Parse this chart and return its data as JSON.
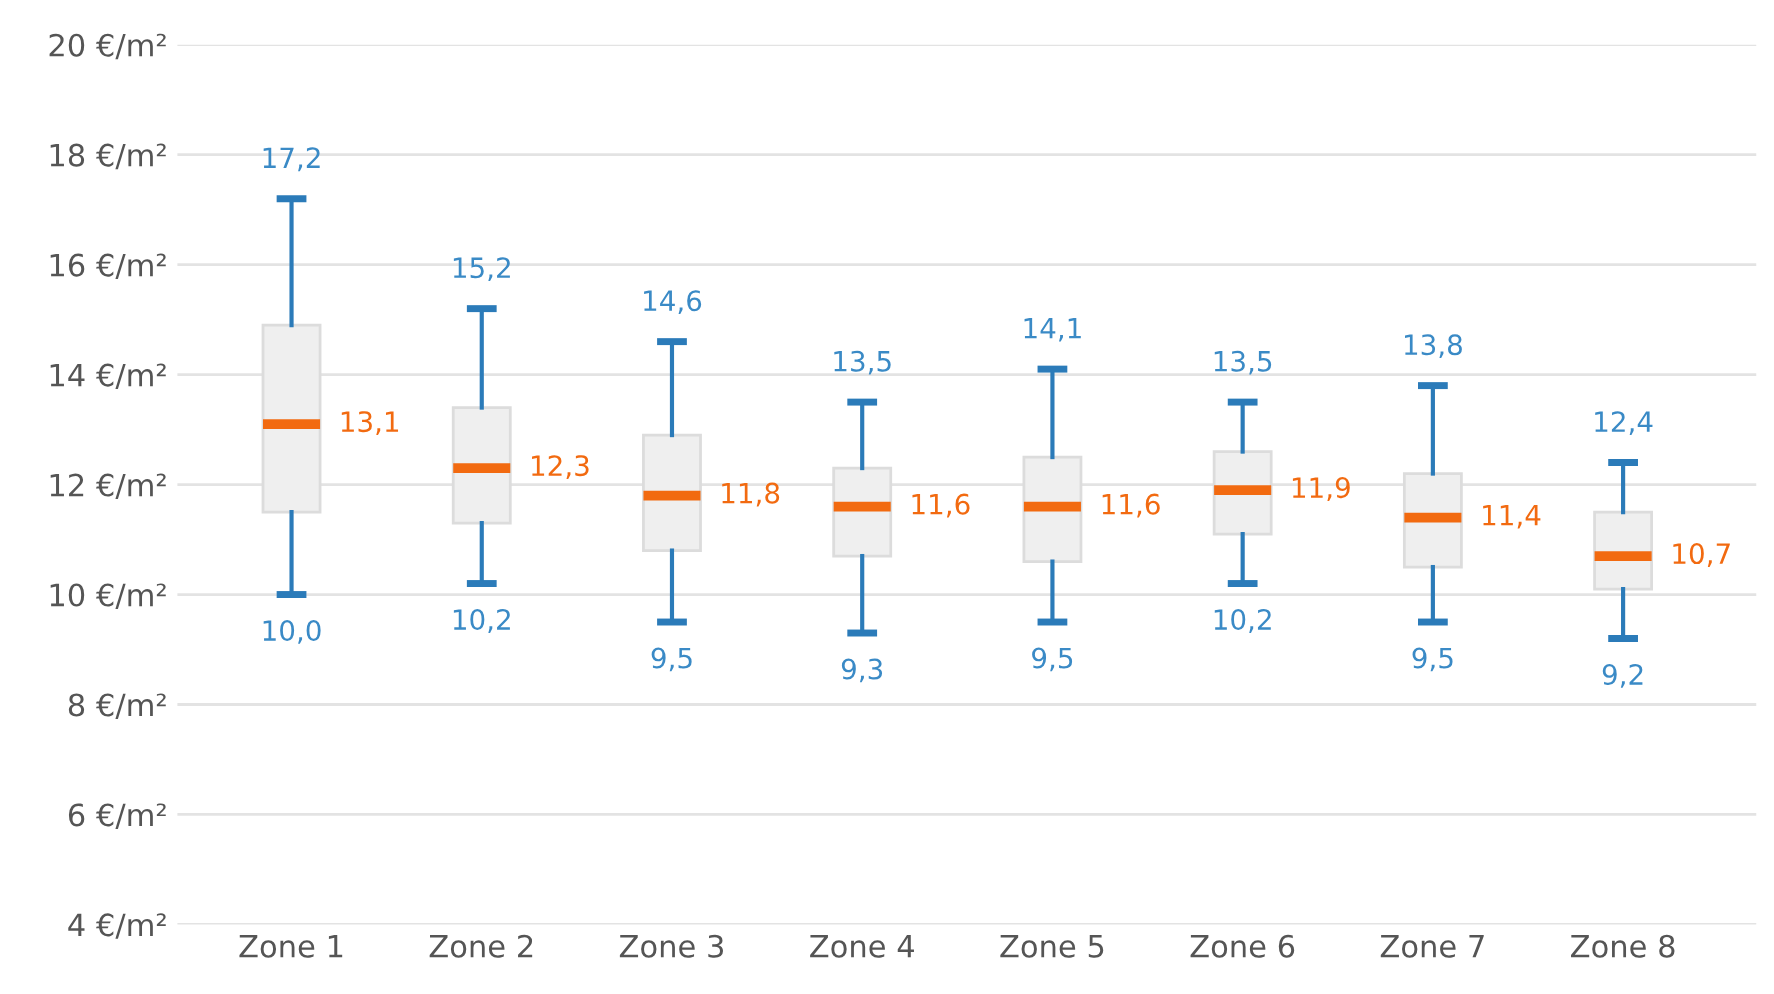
{
  "chart_data": {
    "type": "box",
    "categories": [
      "Zone 1",
      "Zone 2",
      "Zone 3",
      "Zone 4",
      "Zone 5",
      "Zone 6",
      "Zone 7",
      "Zone 8"
    ],
    "series": [
      {
        "color": "#efefef",
        "boxes": [
          {
            "low": 10.0,
            "q1": 11.5,
            "median": 13.1,
            "q3": 14.9,
            "high": 17.2
          },
          {
            "low": 10.2,
            "q1": 11.3,
            "median": 12.3,
            "q3": 13.4,
            "high": 15.2
          },
          {
            "low": 9.5,
            "q1": 10.8,
            "median": 11.8,
            "q3": 12.9,
            "high": 14.6
          },
          {
            "low": 9.3,
            "q1": 10.7,
            "median": 11.6,
            "q3": 12.3,
            "high": 13.5
          },
          {
            "low": 9.5,
            "q1": 10.6,
            "median": 11.6,
            "q3": 12.5,
            "high": 14.1
          },
          {
            "low": 10.2,
            "q1": 11.1,
            "median": 11.9,
            "q3": 12.6,
            "high": 13.5
          },
          {
            "low": 9.5,
            "q1": 10.5,
            "median": 11.4,
            "q3": 12.2,
            "high": 13.8
          },
          {
            "low": 9.2,
            "q1": 10.1,
            "median": 10.7,
            "q3": 11.5,
            "high": 12.4
          }
        ]
      }
    ],
    "annotations": [
      {
        "text": "17,2",
        "x": "Zone 1",
        "y": 17.2
      },
      {
        "text": "13,1",
        "x": "Zone 1",
        "y": 13.1
      },
      {
        "text": "10,0",
        "x": "Zone 1",
        "y": 10.0
      },
      {
        "text": "15,2",
        "x": "Zone 2",
        "y": 15.2
      },
      {
        "text": "12,3",
        "x": "Zone 2",
        "y": 12.3
      },
      {
        "text": "10,2",
        "x": "Zone 2",
        "y": 10.2
      },
      {
        "text": "14,6",
        "x": "Zone 3",
        "y": 14.6
      },
      {
        "text": "11,8",
        "x": "Zone 3",
        "y": 11.8
      },
      {
        "text": "9,5",
        "x": "Zone 3",
        "y": 9.5
      },
      {
        "text": "13,5",
        "x": "Zone 4",
        "y": 13.5
      },
      {
        "text": "11,6",
        "x": "Zone 4",
        "y": 11.6
      },
      {
        "text": "9,3",
        "x": "Zone 4",
        "y": 9.3
      },
      {
        "text": "14,1",
        "x": "Zone 5",
        "y": 14.1
      },
      {
        "text": "11,6",
        "x": "Zone 5",
        "y": 11.6
      },
      {
        "text": "9,5",
        "x": "Zone 5",
        "y": 9.5
      },
      {
        "text": "13,5",
        "x": "Zone 6",
        "y": 13.5
      },
      {
        "text": "11,9",
        "x": "Zone 6",
        "y": 11.9
      },
      {
        "text": "10,2",
        "x": "Zone 6",
        "y": 10.2
      },
      {
        "text": "13,8",
        "x": "Zone 7",
        "y": 13.8
      },
      {
        "text": "11,4",
        "x": "Zone 7",
        "y": 11.4
      },
      {
        "text": "9,5",
        "x": "Zone 7",
        "y": 9.5
      },
      {
        "text": "12,4",
        "x": "Zone 8",
        "y": 12.4
      },
      {
        "text": "10,7",
        "x": "Zone 8",
        "y": 10.7
      },
      {
        "text": "9,2",
        "x": "Zone 8",
        "y": 9.2
      }
    ],
    "ylim": [
      4,
      20
    ],
    "yticks": [
      {
        "value": 4,
        "label": "4 €/m²"
      },
      {
        "value": 6,
        "label": "6 €/m²"
      },
      {
        "value": 8,
        "label": "8 €/m²"
      },
      {
        "value": 10,
        "label": "10 €/m²"
      },
      {
        "value": 12,
        "label": "12 €/m²"
      },
      {
        "value": 14,
        "label": "14 €/m²"
      },
      {
        "value": 16,
        "label": "16 €/m²"
      },
      {
        "value": 18,
        "label": "18 €/m²"
      },
      {
        "value": 20,
        "label": "20 €/m²"
      }
    ],
    "grid": "y"
  }
}
